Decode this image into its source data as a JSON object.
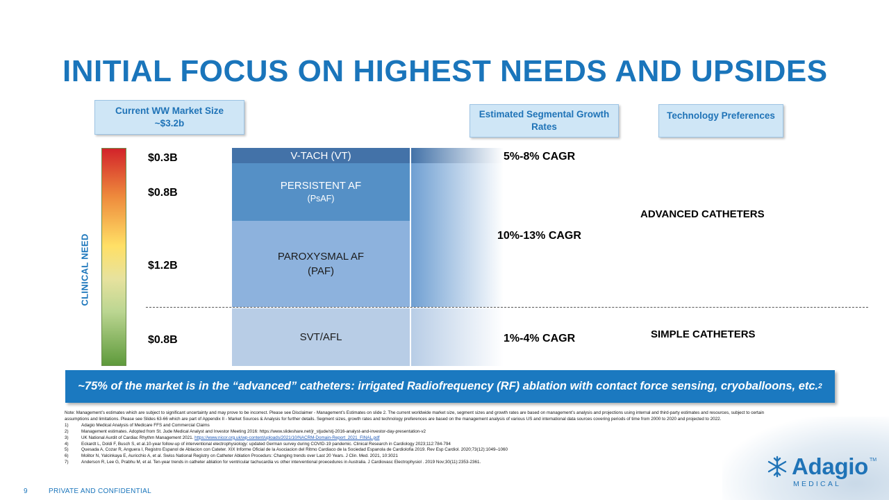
{
  "title": "INITIAL FOCUS ON HIGHEST NEEDS AND UPSIDES",
  "headers": {
    "market_size_line1": "Current WW Market Size",
    "market_size_line2": "~$3.2b",
    "growth_line1": "Estimated Segmental Growth",
    "growth_line2": "Rates",
    "tech": "Technology Preferences"
  },
  "clinical_need_label": "CLINICAL NEED",
  "segments": [
    {
      "size": "$0.3B",
      "name": "V-TACH (VT)",
      "sub": ""
    },
    {
      "size": "$0.8B",
      "name": "PERSISTENT AF",
      "sub": "(PsAF)"
    },
    {
      "size": "$1.2B",
      "name": "PAROXYSMAL AF",
      "sub": "(PAF)"
    },
    {
      "size": "$0.8B",
      "name": "SVT/AFL",
      "sub": ""
    }
  ],
  "growth_rates": [
    "5%-8% CAGR",
    "10%-13% CAGR",
    "1%-4% CAGR"
  ],
  "technology": {
    "advanced": "ADVANCED CATHETERS",
    "simple": "SIMPLE CATHETERS"
  },
  "banner": {
    "text": "~75% of the market is in the “advanced” catheters: irrigated Radiofrequency (RF) ablation with contact force sensing, cryoballoons, etc.",
    "sup": "2"
  },
  "notes": {
    "intro": "Note: Management’s estimates which are subject to significant uncertainty and may prove to be incorrect. Please see Disclaimer - Management’s Estimates on slide 2. The current worldwide market size, segment sizes and growth rates are based on management’s analysis and projections using internal and third-party estimates and resources, subject to certain assumptions and limitations. Please see Slides 63-66 which are part of Appendix II - Market Sources & Analysis for further details. Segment sizes, growth rates and technology preferences are based on the management analysis of various US and international data sources covering periods of time from 2000 to 2020 and projected to 2022.",
    "refs": [
      {
        "num": "1)",
        "text": "Adagio Medical Analysis of Medicare FFS and Commercial Claims",
        "link": ""
      },
      {
        "num": "2)",
        "text": "Management estimates. Adopted from St. Jude Medical Analyst and Investor Meeting 2016:   https://www.slideshare.net/jr_stjude/stj-2016-analyst-and-investor-day-presentation-v2",
        "link": ""
      },
      {
        "num": "3)",
        "text": "UK National Aurdit of Cardiac Rhythm Management 2021. ",
        "link": "https://www.nicor.org.uk/wp-content/uploads/2021/10/NACRM-Domain-Report_2021_FINAL.pdf"
      },
      {
        "num": "4)",
        "text": "Eckardt L, Doldi F, Busch S, et al.10-year follow-up of interventional electrophysiology: updated German survey during COVID-19 pandemic. Clinical Research in Cardiology 2023;112:784-794",
        "link": ""
      },
      {
        "num": "5)",
        "text": "Quesada A, Cozar R, Anguera I, Registro Espanol de Ablacion con Cateter. XIX Informe Oficial de la Asociacion del Ritmo Cardiaco de la Sociedad Espanola de Cardiolofia 2019. Rev Esp Cardiol. 2020;73(12):1049–1060",
        "link": ""
      },
      {
        "num": "6)",
        "text": "Molitor N, Yalcinkaya E, Auricchio A, et al. Swiss National Registry on Catheter Ablation Procedurs: Changing trends over Last 20 Years. J Clin. Med. 2021, 10:3021",
        "link": ""
      },
      {
        "num": "7)",
        "text": "Anderson R, Lee G, Prabhu M, et al.  Ten-year trends in catheter ablation for ventricular tachucardia vs other interventional proecedures in Australia. J Cardiovasc Electrophysiol . 2019 Nov;30(11):2353-2361.",
        "link": ""
      }
    ]
  },
  "footer": {
    "page": "9",
    "confidentiality": "PRIVATE AND CONFIDENTIAL"
  },
  "logo": {
    "name": "Adagio",
    "sub": "MEDICAL",
    "tm": "TM"
  },
  "colors": {
    "brand_blue": "#1a75bb",
    "banner": "#1b79c0",
    "header_box": "#cfe6f6"
  }
}
